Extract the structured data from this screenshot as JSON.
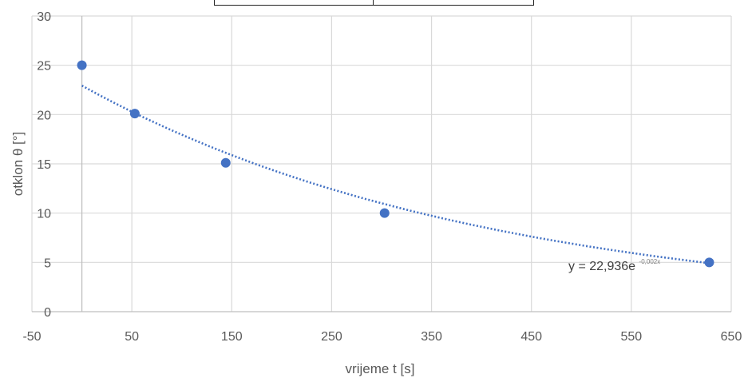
{
  "chart_data": {
    "type": "scatter",
    "title": "",
    "xlabel": "vrijeme t [s]",
    "ylabel": "otklon θ [°]",
    "xlim": [
      -50,
      650
    ],
    "ylim": [
      0,
      30
    ],
    "xticks": [
      -50,
      50,
      150,
      250,
      350,
      450,
      550,
      650
    ],
    "yticks": [
      0,
      5,
      10,
      15,
      20,
      25,
      30
    ],
    "grid": true,
    "legend": "none",
    "series": [
      {
        "x": [
          0,
          53,
          144,
          303,
          628
        ],
        "y": [
          25,
          20.1,
          15.1,
          10,
          5
        ],
        "color": "#4472c4",
        "marker": "circle"
      }
    ],
    "trendline": {
      "type": "exponential",
      "a": 22.936,
      "b": -0.00245,
      "x_range": [
        0,
        628
      ],
      "style": "dotted",
      "color": "#4472c4",
      "label_main": "y = 22,936e",
      "label_exp": "-0,002x"
    }
  }
}
